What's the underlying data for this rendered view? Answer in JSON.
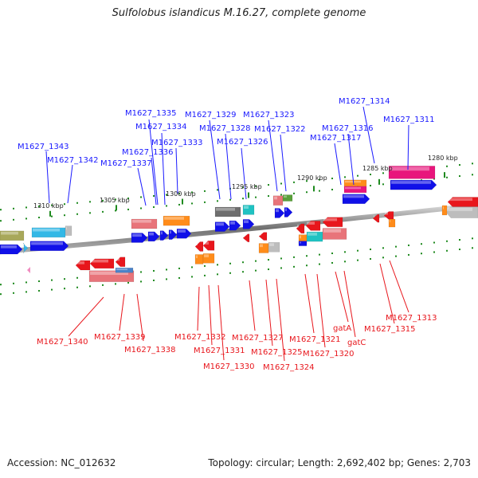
{
  "title": "Sulfolobus islandicus M.16.27, complete genome",
  "footer": {
    "accession": "Accession: NC_012632",
    "topology": "Topology: circular; Length: 2,692,402 bp; Genes: 2,703"
  },
  "colors": {
    "forward_label": "#1a1aff",
    "reverse_label": "#e8161c",
    "backbone": "#7a7a7a",
    "tick": "#1f8a1f"
  },
  "scale_labels": [
    "1310 kbp",
    "1305 kbp",
    "1300 kbp",
    "1295 kbp",
    "1290 kbp",
    "1285 kbp",
    "1280 kbp"
  ],
  "top_labels": [
    "M1627_1343",
    "M1627_1342",
    "M1627_1337",
    "M1627_1336",
    "M1627_1335",
    "M1627_1334",
    "M1627_1333",
    "M1627_1329",
    "M1627_1328",
    "M1627_1326",
    "M1627_1323",
    "M1627_1322",
    "M1627_1317",
    "M1627_1316",
    "M1627_1314",
    "M1627_1311"
  ],
  "bottom_labels": [
    "M1627_1340",
    "M1627_1339",
    "M1627_1338",
    "M1627_1332",
    "M1627_1331",
    "M1627_1330",
    "M1627_1327",
    "M1627_1325",
    "M1627_1324",
    "M1627_1321",
    "M1627_1320",
    "gatA",
    "gatC",
    "M1627_1315",
    "M1627_1313"
  ]
}
